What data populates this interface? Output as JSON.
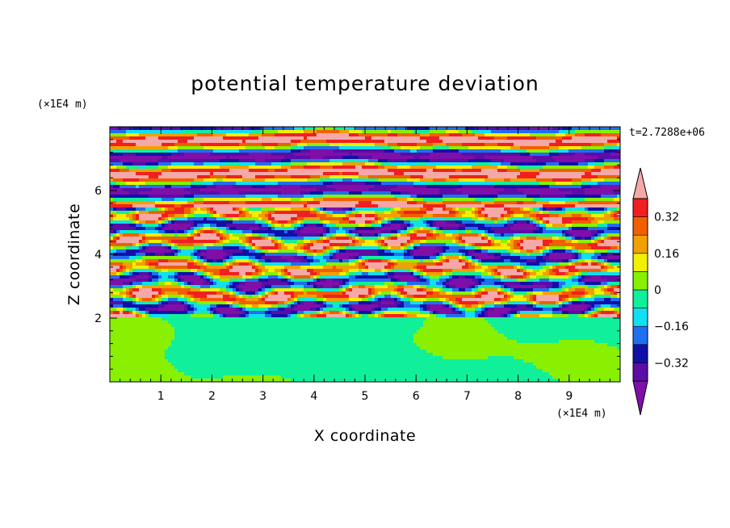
{
  "chart_data": {
    "type": "heatmap",
    "title": "potential temperature deviation",
    "xlabel": "X coordinate",
    "ylabel": "Z coordinate",
    "x_unit": "(×1E4 m)",
    "y_unit": "(×1E4 m)",
    "time_label": "t=2.7288e+06",
    "xlim": [
      0,
      10
    ],
    "ylim": [
      0,
      8
    ],
    "x_ticks": [
      "1",
      "2",
      "3",
      "4",
      "5",
      "6",
      "7",
      "8",
      "9"
    ],
    "y_ticks": [
      "2",
      "4",
      "6"
    ],
    "colorbar": {
      "levels": [
        -0.4,
        -0.32,
        -0.24,
        -0.16,
        -0.08,
        0,
        0.08,
        0.16,
        0.24,
        0.32,
        0.4
      ],
      "tick_labels": [
        "0.32",
        "0.16",
        "0",
        "−0.16",
        "−0.32"
      ],
      "tick_values": [
        0.32,
        0.16,
        0,
        -0.16,
        -0.32
      ],
      "colors": [
        "#7f0fa8",
        "#5b0da6",
        "#1010a8",
        "#1f6ff0",
        "#10e0f0",
        "#10f09a",
        "#88f000",
        "#f0f000",
        "#f0a000",
        "#f06000",
        "#f02020",
        "#f5a8a8"
      ]
    },
    "field_description_bands": [
      {
        "z": [
          0,
          2.0
        ],
        "class": "lower"
      },
      {
        "z": [
          2.0,
          5.5
        ],
        "class": "mixed"
      },
      {
        "z": [
          5.5,
          8.0
        ],
        "class": "upper"
      }
    ]
  }
}
